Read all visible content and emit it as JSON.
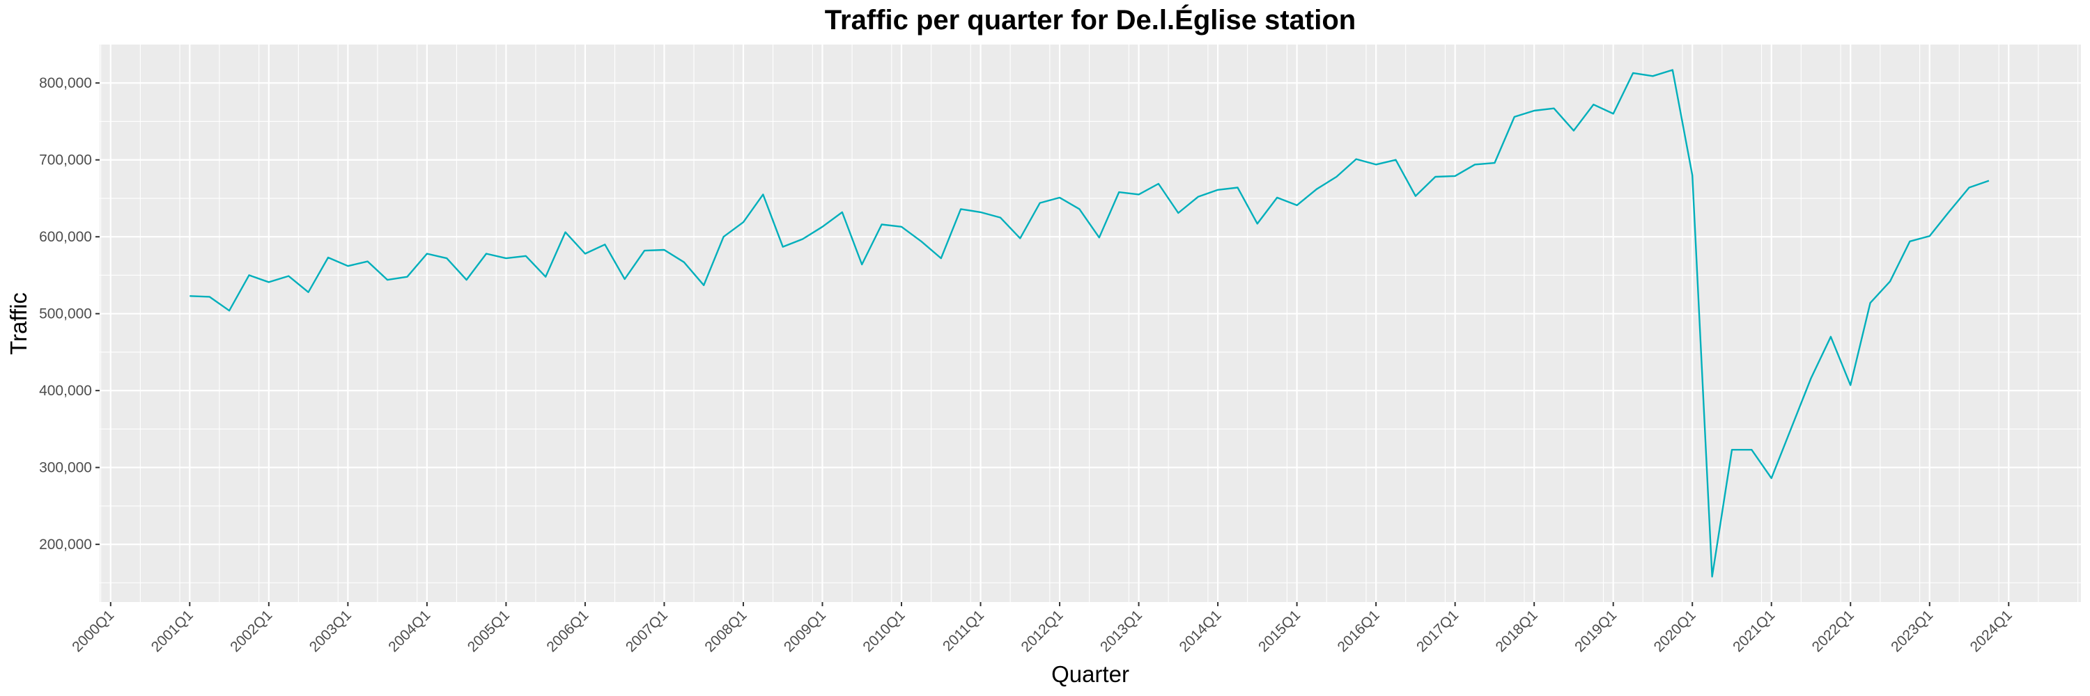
{
  "chart_data": {
    "type": "line",
    "title": "Traffic per quarter for De.l.Église station",
    "xlabel": "Quarter",
    "ylabel": "Traffic",
    "x_tick_labels": [
      "2000Q1",
      "2001Q1",
      "2002Q1",
      "2003Q1",
      "2004Q1",
      "2005Q1",
      "2006Q1",
      "2007Q1",
      "2008Q1",
      "2009Q1",
      "2010Q1",
      "2011Q1",
      "2012Q1",
      "2013Q1",
      "2014Q1",
      "2015Q1",
      "2016Q1",
      "2017Q1",
      "2018Q1",
      "2019Q1",
      "2020Q1",
      "2021Q1",
      "2022Q1",
      "2023Q1",
      "2024Q1"
    ],
    "y_tick_values": [
      200000,
      300000,
      400000,
      500000,
      600000,
      700000,
      800000
    ],
    "y_tick_labels": [
      "200,000",
      "300,000",
      "400,000",
      "500,000",
      "600,000",
      "700,000",
      "800,000"
    ],
    "ylim": [
      125000,
      850000
    ],
    "xlim": [
      "2000Q1",
      "2024Q4"
    ],
    "grid": true,
    "line_color": "#00AFBB",
    "panel_background": "#EBEBEB",
    "x": [
      "2001Q1",
      "2001Q2",
      "2001Q3",
      "2001Q4",
      "2002Q1",
      "2002Q2",
      "2002Q3",
      "2002Q4",
      "2003Q1",
      "2003Q2",
      "2003Q3",
      "2003Q4",
      "2004Q1",
      "2004Q2",
      "2004Q3",
      "2004Q4",
      "2005Q1",
      "2005Q2",
      "2005Q3",
      "2005Q4",
      "2006Q1",
      "2006Q2",
      "2006Q3",
      "2006Q4",
      "2007Q1",
      "2007Q2",
      "2007Q3",
      "2007Q4",
      "2008Q1",
      "2008Q2",
      "2008Q3",
      "2008Q4",
      "2009Q1",
      "2009Q2",
      "2009Q3",
      "2009Q4",
      "2010Q1",
      "2010Q2",
      "2010Q3",
      "2010Q4",
      "2011Q1",
      "2011Q2",
      "2011Q3",
      "2011Q4",
      "2012Q1",
      "2012Q2",
      "2012Q3",
      "2012Q4",
      "2013Q1",
      "2013Q2",
      "2013Q3",
      "2013Q4",
      "2014Q1",
      "2014Q2",
      "2014Q3",
      "2014Q4",
      "2015Q1",
      "2015Q2",
      "2015Q3",
      "2015Q4",
      "2016Q1",
      "2016Q2",
      "2016Q3",
      "2016Q4",
      "2017Q1",
      "2017Q2",
      "2017Q3",
      "2017Q4",
      "2018Q1",
      "2018Q2",
      "2018Q3",
      "2018Q4",
      "2019Q1",
      "2019Q2",
      "2019Q3",
      "2019Q4",
      "2020Q1",
      "2020Q2",
      "2020Q3",
      "2020Q4",
      "2021Q1",
      "2021Q2",
      "2021Q3",
      "2021Q4",
      "2022Q1",
      "2022Q2",
      "2022Q3",
      "2022Q4",
      "2023Q1",
      "2023Q2",
      "2023Q3",
      "2023Q4"
    ],
    "values": [
      523000,
      522000,
      504000,
      550000,
      541000,
      549000,
      528000,
      573000,
      562000,
      568000,
      544000,
      548000,
      578000,
      572000,
      544000,
      578000,
      572000,
      575000,
      548000,
      606000,
      578000,
      590000,
      545000,
      582000,
      583000,
      567000,
      537000,
      600000,
      619000,
      655000,
      587000,
      597000,
      613000,
      632000,
      564000,
      616000,
      613000,
      594000,
      572000,
      636000,
      632000,
      625000,
      598000,
      644000,
      651000,
      636000,
      599000,
      658000,
      655000,
      669000,
      631000,
      652000,
      661000,
      664000,
      617000,
      651000,
      641000,
      662000,
      678000,
      701000,
      694000,
      700000,
      653000,
      678000,
      679000,
      694000,
      696000,
      756000,
      764000,
      767000,
      738000,
      772000,
      760000,
      813000,
      809000,
      817000,
      680000,
      158000,
      323000,
      323000,
      286000,
      351000,
      416000,
      470000,
      407000,
      514000,
      542000,
      594000,
      601000,
      633000,
      664000,
      673000
    ]
  }
}
